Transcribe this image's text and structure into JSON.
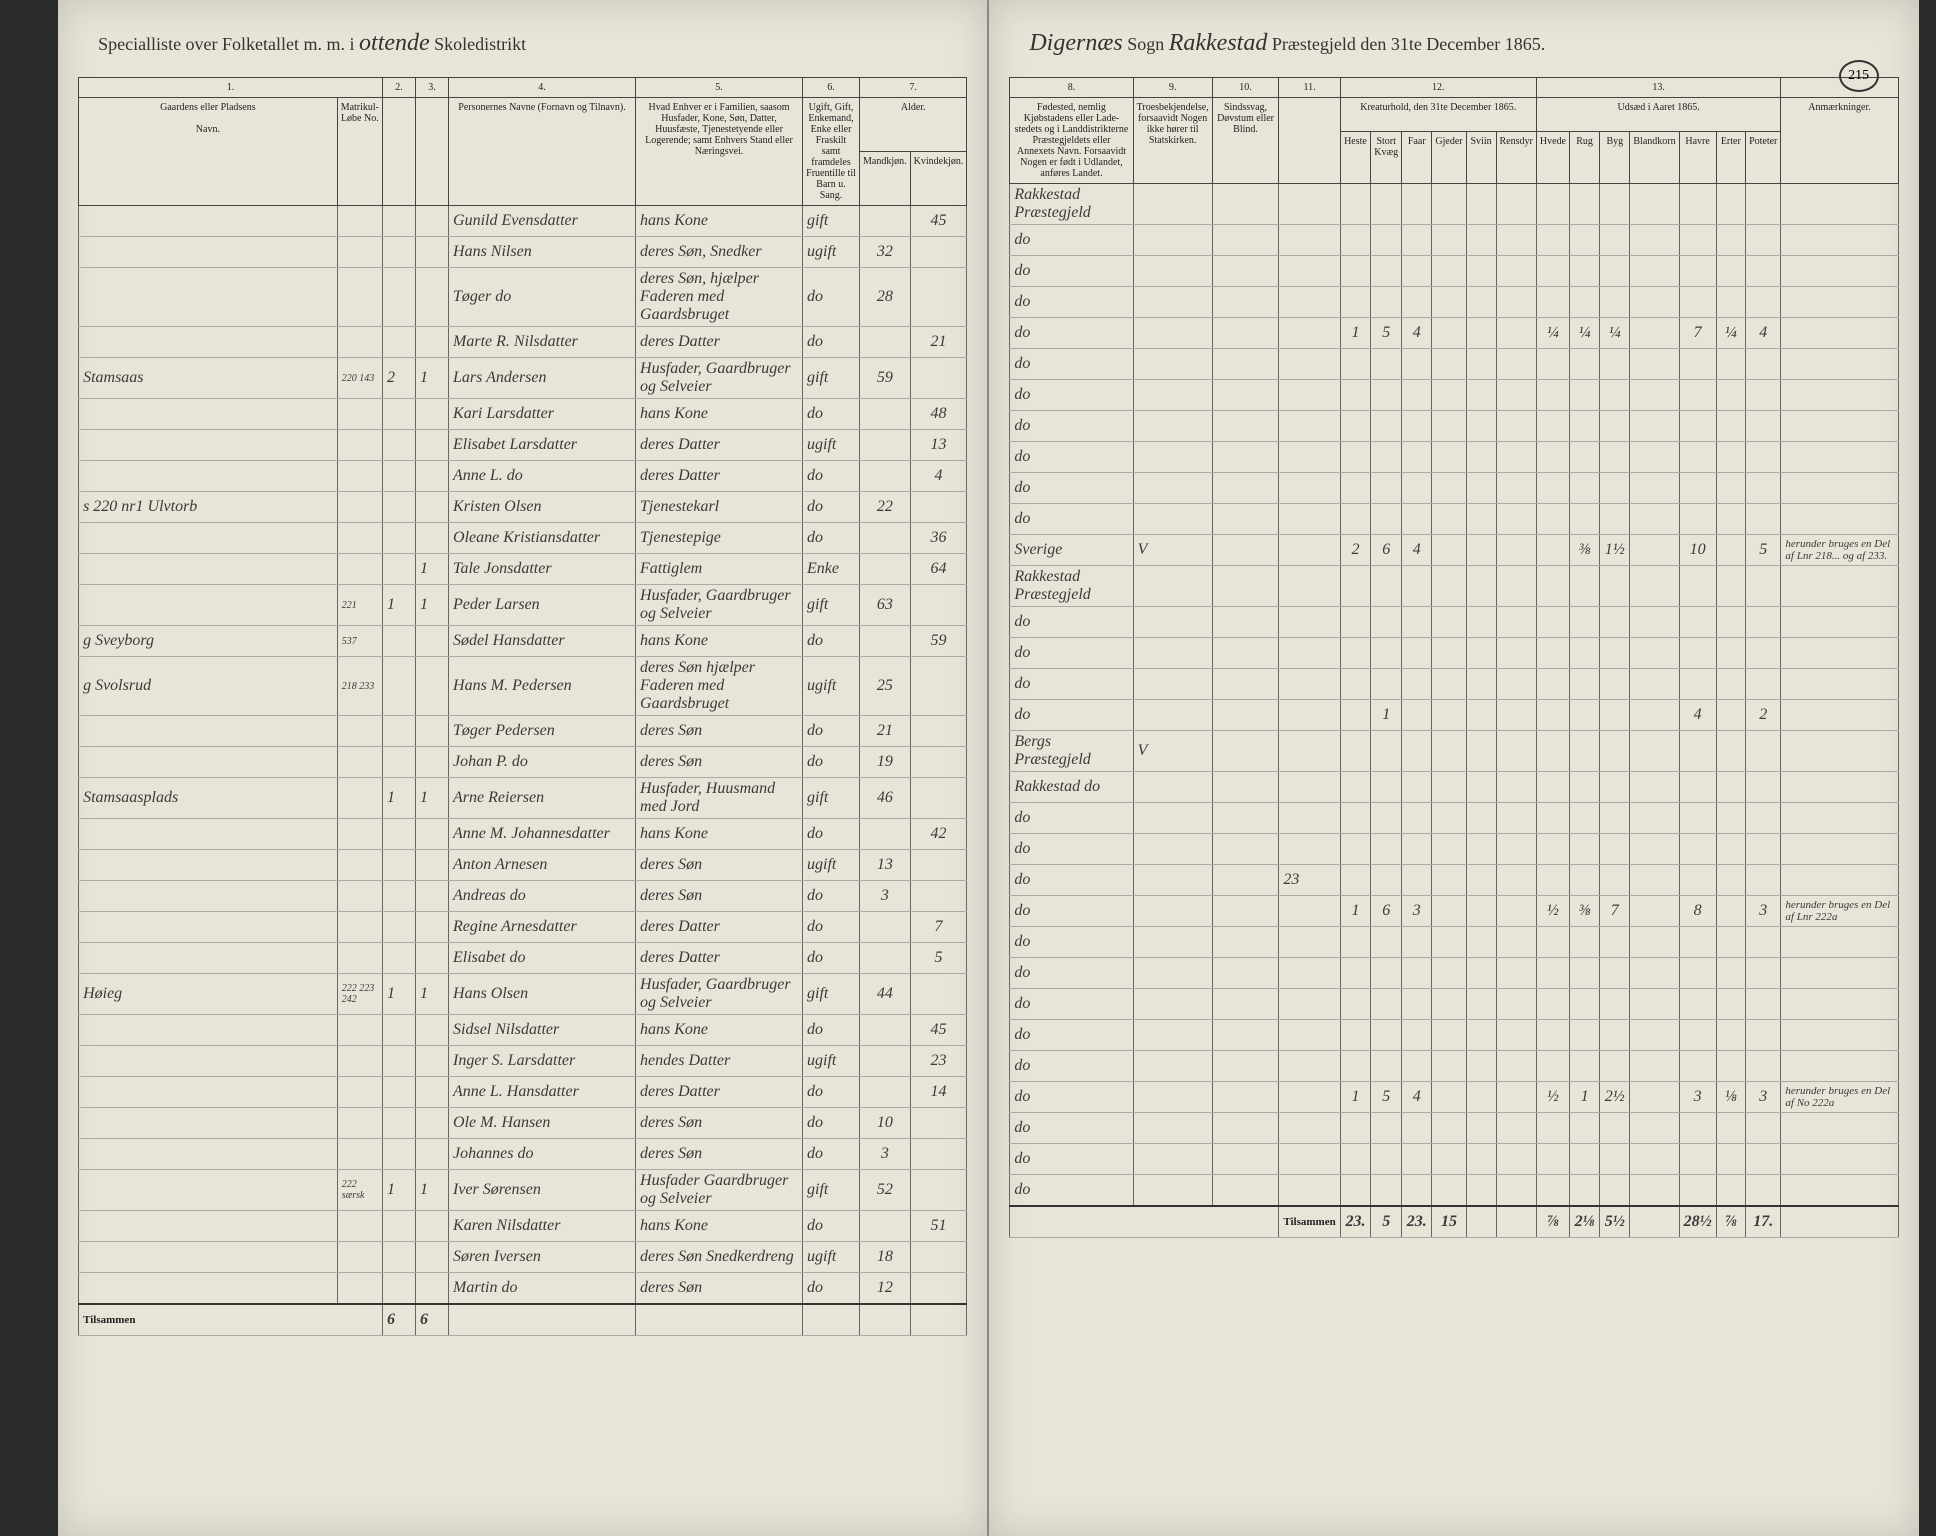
{
  "header": {
    "left_prefix": "Specialliste over Folketallet m. m. i",
    "district": "ottende",
    "district_label": "Skoledistrikt",
    "sogn_label": "Sogn",
    "sogn": "Digernæs",
    "parish": "Rakkestad",
    "parish_label": "Præstegjeld den 31te December 1865.",
    "page_number": "215"
  },
  "columns_left": {
    "c1": "1.",
    "c2": "2.",
    "c3": "3.",
    "c4": "4.",
    "c5": "5.",
    "c6": "6.",
    "c7": "7.",
    "gaard_label": "Gaardens eller Pladsens",
    "navn_label": "Navn.",
    "matr_label": "Matrikul-Løbe No.",
    "persons_label": "Personernes Navne (Fornavn og Tilnavn).",
    "role_label": "Hvad Enhver er i Familien, saasom Husfader, Kone, Søn, Datter, Huusfæste, Tjenestetyende eller Logerende; samt Enhvers Stand eller Næringsvei.",
    "marital_label": "Ugift, Gift, Enkemand, Enke eller Fraskilt samt framdeles Fruentille til Barn u. Sang.",
    "age_label": "Alder.",
    "age_sub1": "Mandkjøn.",
    "age_sub2": "Kvindekjøn."
  },
  "columns_right": {
    "c8": "8.",
    "c9": "9.",
    "c10": "10.",
    "c11": "11.",
    "c12": "12.",
    "c13": "13.",
    "birthplace_label": "Fødested, nemlig Kjøbstadens eller Lade-stedets og i Landdistrikterne Præstegjeldets eller Annexets Navn. Forsaavidt Nogen er født i Udlandet, anføres Landet.",
    "religion_label": "Troesbekjendelse, forsaavidt Nogen ikke hører til Statskirken.",
    "disability_label": "Sindssvag, Døvstum eller Blind.",
    "livestock_label": "Kreaturhold, den 31te December 1865.",
    "crops_label": "Udsæd i Aaret 1865.",
    "remarks_label": "Anmærkninger."
  },
  "rows": [
    {
      "farm": "",
      "matr": "",
      "c2": "",
      "c3": "",
      "name": "Gunild Evensdatter",
      "role": "hans Kone",
      "marital": "gift",
      "age_m": "",
      "age_f": "45",
      "place": "Rakkestad Præstegjeld"
    },
    {
      "farm": "",
      "matr": "",
      "c2": "",
      "c3": "",
      "name": "Hans Nilsen",
      "role": "deres Søn, Snedker",
      "marital": "ugift",
      "age_m": "32",
      "age_f": "",
      "place": "do"
    },
    {
      "farm": "",
      "matr": "",
      "c2": "",
      "c3": "",
      "name": "Tøger do",
      "role": "deres Søn, hjælper Faderen med Gaardsbruget",
      "marital": "do",
      "age_m": "28",
      "age_f": "",
      "place": "do"
    },
    {
      "farm": "",
      "matr": "",
      "c2": "",
      "c3": "",
      "name": "Marte R. Nilsdatter",
      "role": "deres Datter",
      "marital": "do",
      "age_m": "",
      "age_f": "21",
      "place": "do"
    },
    {
      "farm": "Stamsaas",
      "matr": "220 143",
      "c2": "2",
      "c3": "1",
      "name": "Lars Andersen",
      "role": "Husfader, Gaardbruger og Selveier",
      "marital": "gift",
      "age_m": "59",
      "age_f": "",
      "place": "do",
      "livestock": [
        "1",
        "5",
        "4",
        "",
        "",
        "",
        "¼",
        "¼",
        "¼",
        "",
        "7",
        "¼",
        "4"
      ]
    },
    {
      "farm": "",
      "matr": "",
      "c2": "",
      "c3": "",
      "name": "Kari Larsdatter",
      "role": "hans Kone",
      "marital": "do",
      "age_m": "",
      "age_f": "48",
      "place": "do"
    },
    {
      "farm": "",
      "matr": "",
      "c2": "",
      "c3": "",
      "name": "Elisabet Larsdatter",
      "role": "deres Datter",
      "marital": "ugift",
      "age_m": "",
      "age_f": "13",
      "place": "do"
    },
    {
      "farm": "",
      "matr": "",
      "c2": "",
      "c3": "",
      "name": "Anne L. do",
      "role": "deres Datter",
      "marital": "do",
      "age_m": "",
      "age_f": "4",
      "place": "do"
    },
    {
      "farm": "s 220 nr1 Ulvtorb",
      "matr": "",
      "c2": "",
      "c3": "",
      "name": "Kristen Olsen",
      "role": "Tjenestekarl",
      "marital": "do",
      "age_m": "22",
      "age_f": "",
      "place": "do"
    },
    {
      "farm": "",
      "matr": "",
      "c2": "",
      "c3": "",
      "name": "Oleane Kristiansdatter",
      "role": "Tjenestepige",
      "marital": "do",
      "age_m": "",
      "age_f": "36",
      "place": "do"
    },
    {
      "farm": "",
      "matr": "",
      "c2": "",
      "c3": "1",
      "name": "Tale Jonsdatter",
      "role": "Fattiglem",
      "marital": "Enke",
      "age_m": "",
      "age_f": "64",
      "place": "do"
    },
    {
      "farm": "",
      "matr": "221",
      "c2": "1",
      "c3": "1",
      "name": "Peder Larsen",
      "role": "Husfader, Gaardbruger og Selveier",
      "marital": "gift",
      "age_m": "63",
      "age_f": "",
      "place": "Sverige",
      "col9": "V",
      "livestock": [
        "2",
        "6",
        "4",
        "",
        "",
        "",
        "",
        "⅜",
        "1½",
        "",
        "10",
        "",
        "5"
      ],
      "remarks": "herunder bruges en Del af Lnr 218... og af 233."
    },
    {
      "farm": "g Sveyborg",
      "matr": "537",
      "c2": "",
      "c3": "",
      "name": "Sødel Hansdatter",
      "role": "hans Kone",
      "marital": "do",
      "age_m": "",
      "age_f": "59",
      "place": "Rakkestad Præstegjeld"
    },
    {
      "farm": "g Svolsrud",
      "matr": "218 233",
      "c2": "",
      "c3": "",
      "name": "Hans M. Pedersen",
      "role": "deres Søn hjælper Faderen med Gaardsbruget",
      "marital": "ugift",
      "age_m": "25",
      "age_f": "",
      "place": "do"
    },
    {
      "farm": "",
      "matr": "",
      "c2": "",
      "c3": "",
      "name": "Tøger Pedersen",
      "role": "deres Søn",
      "marital": "do",
      "age_m": "21",
      "age_f": "",
      "place": "do"
    },
    {
      "farm": "",
      "matr": "",
      "c2": "",
      "c3": "",
      "name": "Johan P. do",
      "role": "deres Søn",
      "marital": "do",
      "age_m": "19",
      "age_f": "",
      "place": "do"
    },
    {
      "farm": "Stamsaasplads",
      "matr": "",
      "c2": "1",
      "c3": "1",
      "name": "Arne Reiersen",
      "role": "Husfader, Huusmand med Jord",
      "marital": "gift",
      "age_m": "46",
      "age_f": "",
      "place": "do",
      "livestock": [
        "",
        "1",
        "",
        "",
        "",
        "",
        "",
        "",
        "",
        "",
        "4",
        "",
        "2"
      ]
    },
    {
      "farm": "",
      "matr": "",
      "c2": "",
      "c3": "",
      "name": "Anne M. Johannesdatter",
      "role": "hans Kone",
      "marital": "do",
      "age_m": "",
      "age_f": "42",
      "place": "Bergs Præstegjeld",
      "col9": "V"
    },
    {
      "farm": "",
      "matr": "",
      "c2": "",
      "c3": "",
      "name": "Anton Arnesen",
      "role": "deres Søn",
      "marital": "ugift",
      "age_m": "13",
      "age_f": "",
      "place": "Rakkestad do"
    },
    {
      "farm": "",
      "matr": "",
      "c2": "",
      "c3": "",
      "name": "Andreas do",
      "role": "deres Søn",
      "marital": "do",
      "age_m": "3",
      "age_f": "",
      "place": "do"
    },
    {
      "farm": "",
      "matr": "",
      "c2": "",
      "c3": "",
      "name": "Regine Arnesdatter",
      "role": "deres Datter",
      "marital": "do",
      "age_m": "",
      "age_f": "7",
      "place": "do"
    },
    {
      "farm": "",
      "matr": "",
      "c2": "",
      "c3": "",
      "name": "Elisabet do",
      "role": "deres Datter",
      "marital": "do",
      "age_m": "",
      "age_f": "5",
      "place": "do",
      "col11": "23"
    },
    {
      "farm": "Høieg",
      "matr": "222 223 242",
      "c2": "1",
      "c3": "1",
      "name": "Hans Olsen",
      "role": "Husfader, Gaardbruger og Selveier",
      "marital": "gift",
      "age_m": "44",
      "age_f": "",
      "place": "do",
      "livestock": [
        "1",
        "6",
        "3",
        "",
        "",
        "",
        "½",
        "⅜",
        "7",
        "",
        "8",
        "",
        "3"
      ],
      "remarks": "herunder bruges en Del af Lnr 222a"
    },
    {
      "farm": "",
      "matr": "",
      "c2": "",
      "c3": "",
      "name": "Sidsel Nilsdatter",
      "role": "hans Kone",
      "marital": "do",
      "age_m": "",
      "age_f": "45",
      "place": "do"
    },
    {
      "farm": "",
      "matr": "",
      "c2": "",
      "c3": "",
      "name": "Inger S. Larsdatter",
      "role": "hendes Datter",
      "marital": "ugift",
      "age_m": "",
      "age_f": "23",
      "place": "do"
    },
    {
      "farm": "",
      "matr": "",
      "c2": "",
      "c3": "",
      "name": "Anne L. Hansdatter",
      "role": "deres Datter",
      "marital": "do",
      "age_m": "",
      "age_f": "14",
      "place": "do"
    },
    {
      "farm": "",
      "matr": "",
      "c2": "",
      "c3": "",
      "name": "Ole M. Hansen",
      "role": "deres Søn",
      "marital": "do",
      "age_m": "10",
      "age_f": "",
      "place": "do"
    },
    {
      "farm": "",
      "matr": "",
      "c2": "",
      "c3": "",
      "name": "Johannes do",
      "role": "deres Søn",
      "marital": "do",
      "age_m": "3",
      "age_f": "",
      "place": "do"
    },
    {
      "farm": "",
      "matr": "222 særsk",
      "c2": "1",
      "c3": "1",
      "name": "Iver Sørensen",
      "role": "Husfader Gaardbruger og Selveier",
      "marital": "gift",
      "age_m": "52",
      "age_f": "",
      "place": "do",
      "livestock": [
        "1",
        "5",
        "4",
        "",
        "",
        "",
        "½",
        "1",
        "2½",
        "",
        "3",
        "⅛",
        "3"
      ],
      "remarks": "herunder bruges en Del af No 222a"
    },
    {
      "farm": "",
      "matr": "",
      "c2": "",
      "c3": "",
      "name": "Karen Nilsdatter",
      "role": "hans Kone",
      "marital": "do",
      "age_m": "",
      "age_f": "51",
      "place": "do"
    },
    {
      "farm": "",
      "matr": "",
      "c2": "",
      "c3": "",
      "name": "Søren Iversen",
      "role": "deres Søn Snedkerdreng",
      "marital": "ugift",
      "age_m": "18",
      "age_f": "",
      "place": "do"
    },
    {
      "farm": "",
      "matr": "",
      "c2": "",
      "c3": "",
      "name": "Martin do",
      "role": "deres Søn",
      "marital": "do",
      "age_m": "12",
      "age_f": "",
      "place": "do"
    }
  ],
  "totals": {
    "label_left": "Tilsammen",
    "c2": "6",
    "c3": "6",
    "label_right": "Tilsammen",
    "livestock": [
      "23.",
      "5",
      "23.",
      "15",
      "",
      "",
      "⅞",
      "2⅛",
      "5½",
      "",
      "28½",
      "⅞",
      "17."
    ]
  },
  "colors": {
    "paper": "#e8e4d8",
    "ink": "#333333",
    "rule": "#666666",
    "dark_bg": "#1a1a1a"
  }
}
